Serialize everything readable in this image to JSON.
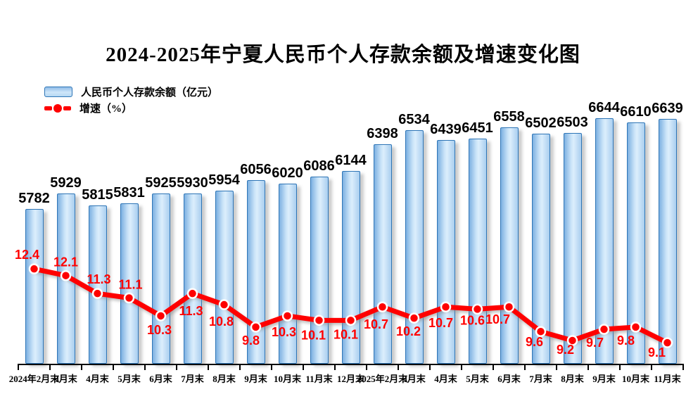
{
  "title": "2024-2025年宁夏人民币个人存款余额及增速变化图",
  "legend": {
    "bar_label": "人民币个人存款余额（亿元）",
    "line_label": "增速（%）"
  },
  "colors": {
    "bar_border": "#2E75B6",
    "bar_fill_light": "#DCEEFC",
    "bar_fill_dark": "#7CB0E1",
    "line_red": "#FE0000",
    "value_label_black": "#000000",
    "value_label_red": "#FF0000",
    "axis_black": "#000000"
  },
  "chart_data": {
    "type": "combo-bar-line",
    "title": "2024-2025年宁夏人民币个人存款余额及增速变化图",
    "grid": false,
    "legend_position": "top-left",
    "categories": [
      "2024年2月末",
      "3月末",
      "4月末",
      "5月末",
      "6月末",
      "7月末",
      "8月末",
      "9月末",
      "10月末",
      "11月末",
      "12月末",
      "2025年2月末",
      "3月末",
      "4月末",
      "5月末",
      "6月末",
      "7月末",
      "8月末",
      "9月末",
      "10月末",
      "11月末"
    ],
    "series": [
      {
        "name": "人民币个人存款余额（亿元）",
        "type": "bar",
        "unit": "亿元",
        "values": [
          5782,
          5929,
          5815,
          5831,
          5925,
          5930,
          5954,
          6056,
          6020,
          6086,
          6144,
          6398,
          6534,
          6439,
          6451,
          6558,
          6502,
          6503,
          6644,
          6610,
          6639
        ],
        "ylim_hint": [
          4300,
          6760
        ]
      },
      {
        "name": "增速（%）",
        "type": "line",
        "unit": "%",
        "values": [
          12.4,
          12.1,
          11.3,
          11.1,
          10.3,
          11.3,
          10.8,
          9.8,
          10.3,
          10.1,
          10.1,
          10.7,
          10.2,
          10.7,
          10.6,
          10.7,
          9.6,
          9.2,
          9.7,
          9.8,
          9.1
        ],
        "ylim_hint": [
          8.5,
          13.0
        ],
        "label_offsets": [
          [
            -10,
            -14
          ],
          [
            0,
            -13
          ],
          [
            2,
            -14
          ],
          [
            2,
            -13
          ],
          [
            -2,
            26
          ],
          [
            -2,
            31
          ],
          [
            -4,
            30
          ],
          [
            -7,
            25
          ],
          [
            -5,
            29
          ],
          [
            -8,
            27
          ],
          [
            -7,
            26
          ],
          [
            -9,
            31
          ],
          [
            -8,
            25
          ],
          [
            -7,
            29
          ],
          [
            -7,
            22
          ],
          [
            -16,
            24
          ],
          [
            -9,
            21
          ],
          [
            -10,
            19
          ],
          [
            -13,
            25
          ],
          [
            -14,
            25
          ],
          [
            -15,
            20
          ]
        ]
      }
    ]
  }
}
